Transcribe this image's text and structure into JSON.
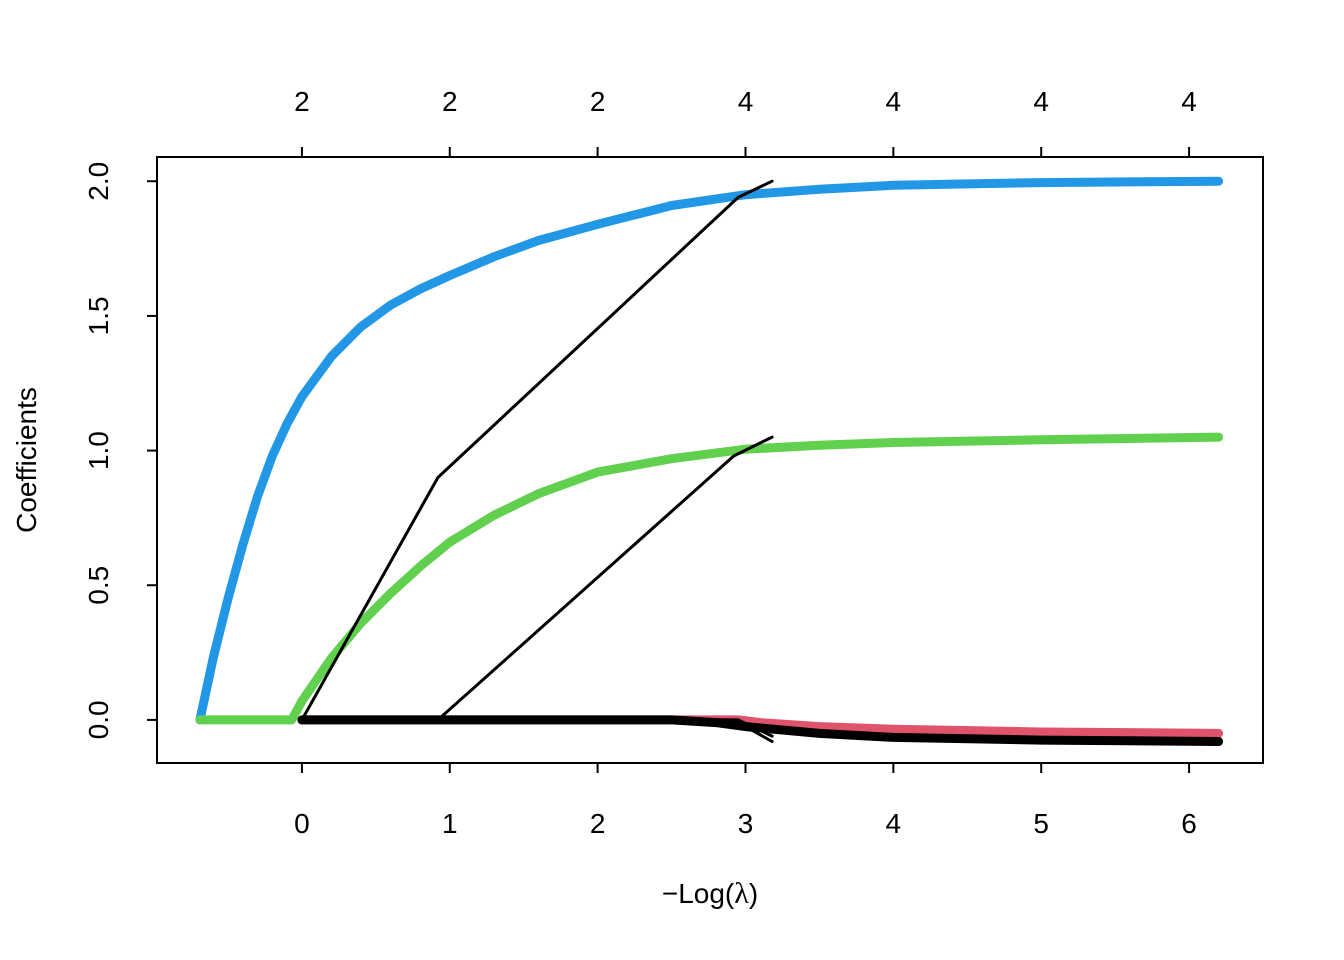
{
  "chart_data": {
    "type": "line",
    "xlabel_prefix": "−Log(",
    "xlabel_symbol": "λ",
    "xlabel_suffix": ")",
    "ylabel": "Coefficients",
    "xlim": [
      -0.98,
      6.5
    ],
    "ylim": [
      -0.16,
      2.09
    ],
    "x_ticks": [
      0,
      1,
      2,
      3,
      4,
      5,
      6
    ],
    "x_tick_labels": [
      "0",
      "1",
      "2",
      "3",
      "4",
      "5",
      "6"
    ],
    "y_ticks": [
      0,
      0.5,
      1,
      1.5,
      2
    ],
    "y_tick_labels": [
      "0.0",
      "0.5",
      "1.0",
      "1.5",
      "2.0"
    ],
    "top_ticks": [
      0,
      1,
      2,
      3,
      4,
      5,
      6
    ],
    "top_tick_labels": [
      "2",
      "2",
      "2",
      "4",
      "4",
      "4",
      "4"
    ],
    "grid": false,
    "series": [
      {
        "color": "#2297E6",
        "width": "thick",
        "points": [
          [
            -0.69,
            0
          ],
          [
            -0.6,
            0.23
          ],
          [
            -0.5,
            0.45
          ],
          [
            -0.4,
            0.65
          ],
          [
            -0.3,
            0.83
          ],
          [
            -0.2,
            0.98
          ],
          [
            -0.1,
            1.1
          ],
          [
            0,
            1.2
          ],
          [
            0.2,
            1.35
          ],
          [
            0.4,
            1.46
          ],
          [
            0.6,
            1.54
          ],
          [
            0.8,
            1.6
          ],
          [
            1,
            1.65
          ],
          [
            1.3,
            1.72
          ],
          [
            1.6,
            1.78
          ],
          [
            2,
            1.84
          ],
          [
            2.5,
            1.91
          ],
          [
            3,
            1.95
          ],
          [
            3.5,
            1.97
          ],
          [
            4,
            1.985
          ],
          [
            5,
            1.995
          ],
          [
            6.2,
            2.0
          ]
        ]
      },
      {
        "color": "#61D04F",
        "width": "thick",
        "points": [
          [
            -0.69,
            0
          ],
          [
            -0.07,
            0
          ],
          [
            0,
            0.07
          ],
          [
            0.2,
            0.23
          ],
          [
            0.4,
            0.36
          ],
          [
            0.6,
            0.47
          ],
          [
            0.8,
            0.57
          ],
          [
            1,
            0.66
          ],
          [
            1.3,
            0.76
          ],
          [
            1.6,
            0.84
          ],
          [
            2,
            0.92
          ],
          [
            2.5,
            0.97
          ],
          [
            3,
            1.005
          ],
          [
            3.5,
            1.02
          ],
          [
            4,
            1.03
          ],
          [
            5,
            1.04
          ],
          [
            6.2,
            1.05
          ]
        ]
      },
      {
        "color": "#DF536B",
        "width": "thick",
        "points": [
          [
            0,
            0
          ],
          [
            2,
            0
          ],
          [
            2.95,
            0
          ],
          [
            3.1,
            -0.01
          ],
          [
            3.5,
            -0.025
          ],
          [
            4,
            -0.035
          ],
          [
            5,
            -0.045
          ],
          [
            6.2,
            -0.05
          ]
        ]
      },
      {
        "color": "#000000",
        "width": "thick",
        "points": [
          [
            0,
            0
          ],
          [
            2.5,
            0
          ],
          [
            2.8,
            -0.01
          ],
          [
            3,
            -0.025
          ],
          [
            3.5,
            -0.05
          ],
          [
            4,
            -0.065
          ],
          [
            5,
            -0.075
          ],
          [
            6.2,
            -0.08
          ]
        ]
      },
      {
        "color": "#000000",
        "width": "thin",
        "points": [
          [
            0,
            0
          ],
          [
            0.92,
            0.9
          ],
          [
            2.95,
            1.94
          ],
          [
            3.18,
            2.0
          ]
        ]
      },
      {
        "color": "#000000",
        "width": "thin",
        "points": [
          [
            0.92,
            0
          ],
          [
            2.92,
            0.98
          ],
          [
            3.18,
            1.05
          ]
        ]
      },
      {
        "color": "#000000",
        "width": "thin",
        "points": [
          [
            0,
            0
          ],
          [
            2.95,
            0
          ],
          [
            3.18,
            -0.06
          ]
        ]
      },
      {
        "color": "#000000",
        "width": "thin",
        "points": [
          [
            0.92,
            0
          ],
          [
            2.92,
            0
          ],
          [
            3.18,
            -0.08
          ]
        ]
      }
    ]
  }
}
